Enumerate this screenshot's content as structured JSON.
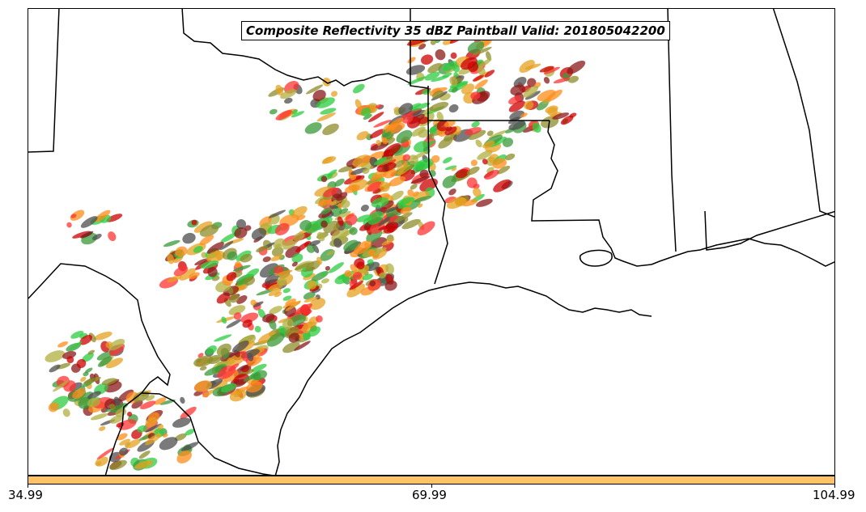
{
  "title": "Composite Reflectivity 35 dBZ Paintball Valid: 201805042200",
  "colorbar": {
    "color": "#ffc266",
    "ticks": [
      "34.99",
      "69.99",
      "104.99"
    ]
  },
  "colors": {
    "member_colors": [
      "#ff3333",
      "#ff8c1a",
      "#8c8c2a",
      "#2ecc40",
      "#4d4d4d",
      "#8b1a1a",
      "#e6a020",
      "#3a9a3a",
      "#b0b040",
      "#cc0000"
    ]
  }
}
